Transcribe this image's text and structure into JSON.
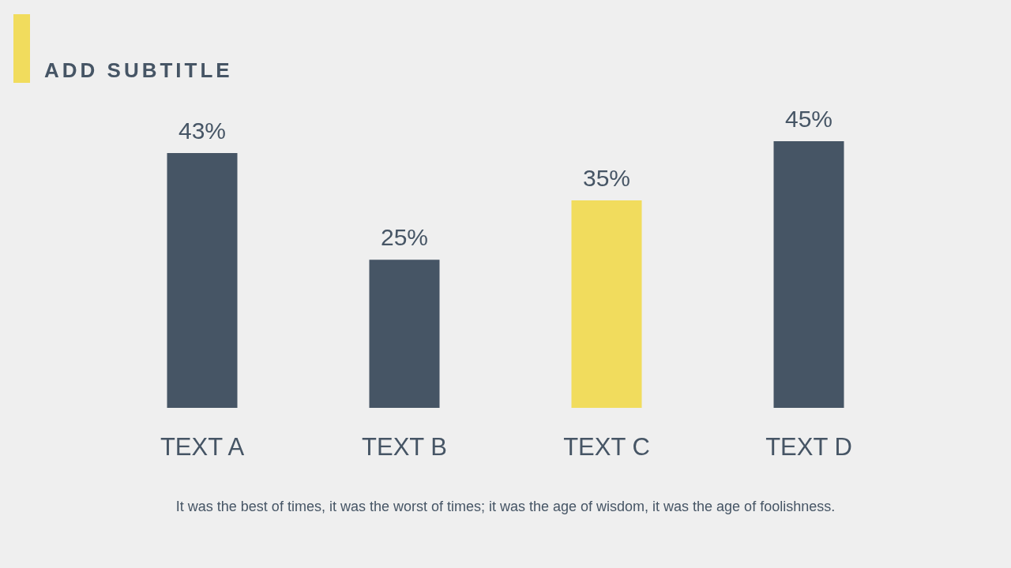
{
  "chart_data": {
    "type": "bar",
    "subtitle": "ADD SUBTITLE",
    "categories": [
      "TEXT A",
      "TEXT B",
      "TEXT C",
      "TEXT D"
    ],
    "values": [
      43,
      25,
      35,
      45
    ],
    "colors": [
      "#465565",
      "#465565",
      "#f1dc5d",
      "#465565"
    ],
    "value_labels": [
      "43%",
      "25%",
      "35%",
      "45%"
    ],
    "tick_labels": "x",
    "annotations": [
      "It was the best of times, it was the worst of times; it was the age of wisdom, it was the age of foolishness."
    ]
  }
}
